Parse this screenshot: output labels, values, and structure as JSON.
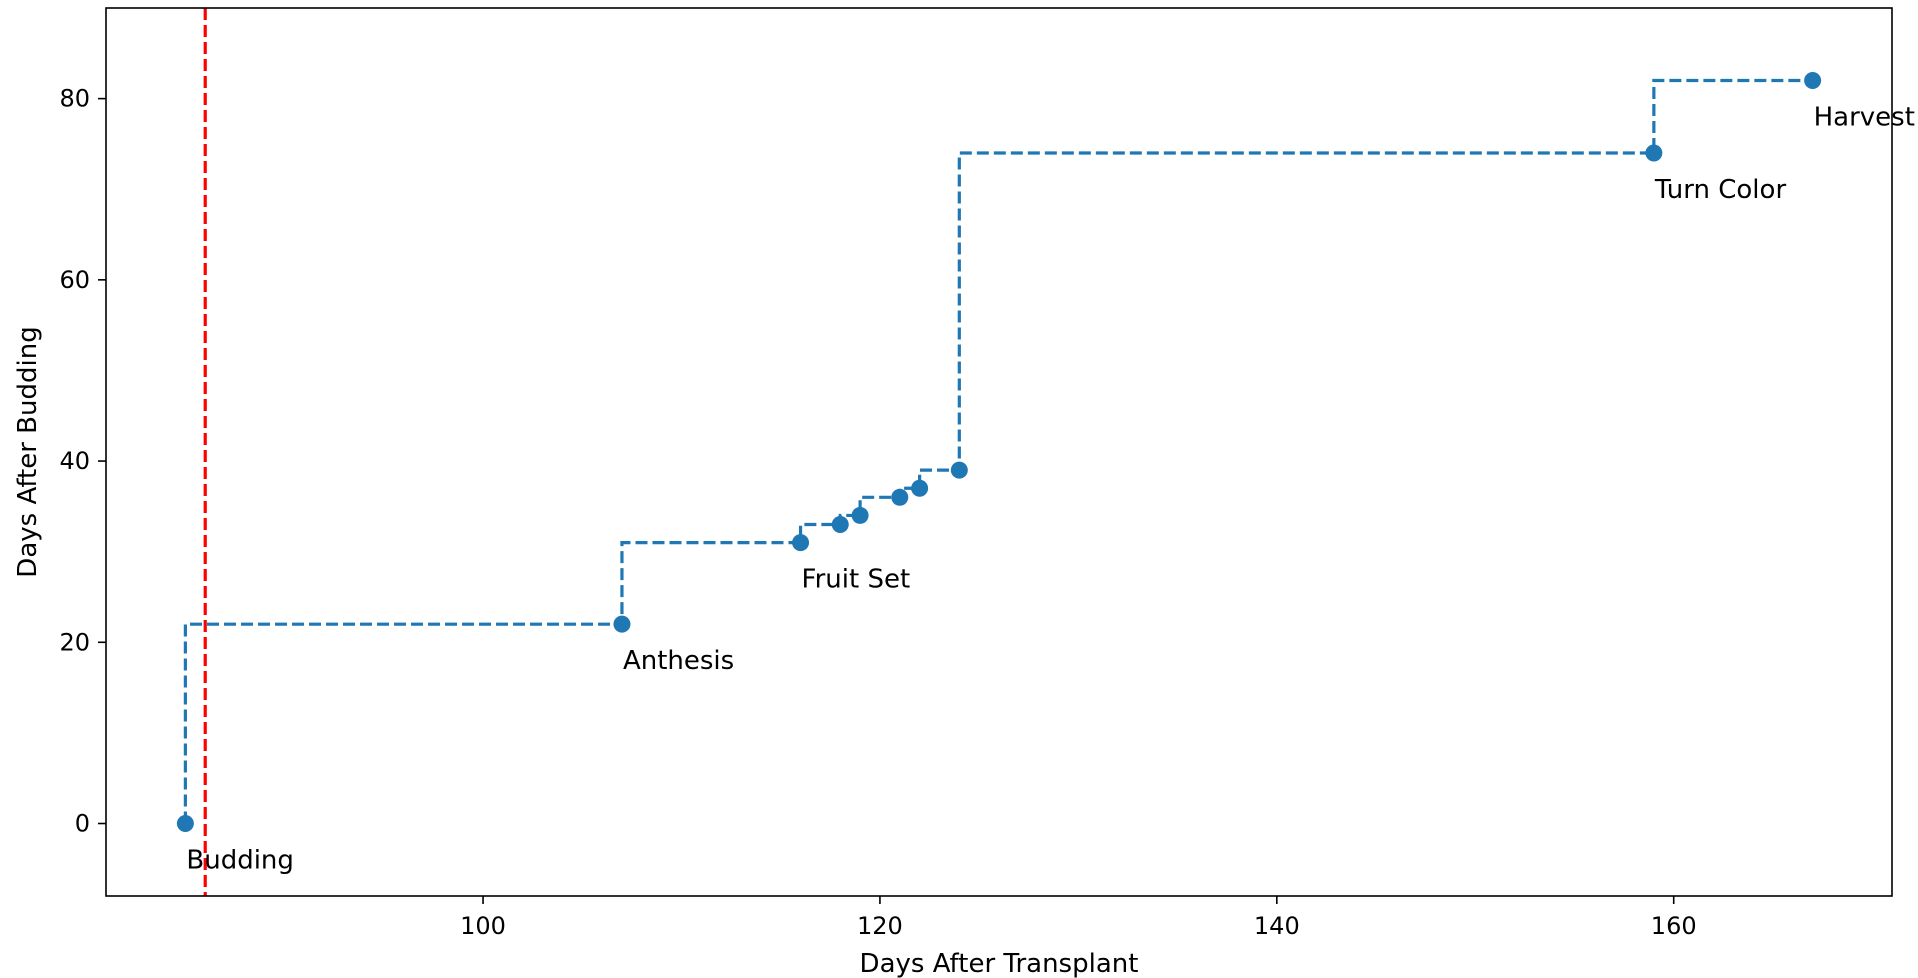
{
  "chart_data": {
    "type": "line",
    "title": "",
    "xlabel": "Days After Transplant",
    "ylabel": "Days After Budding",
    "xlim": [
      81,
      171
    ],
    "ylim": [
      -8,
      90
    ],
    "xticks": [
      100,
      120,
      140,
      160
    ],
    "yticks": [
      0,
      20,
      40,
      60,
      80
    ],
    "grid": false,
    "legend": "none",
    "series": [
      {
        "style": "steps-pre, dashed line with circle markers",
        "color": "#1f77b4",
        "x": [
          85,
          107,
          116,
          118,
          119,
          121,
          122,
          124,
          159,
          167
        ],
        "y": [
          0,
          22,
          31,
          33,
          34,
          36,
          37,
          39,
          74,
          82
        ]
      }
    ],
    "vline": {
      "x": 86,
      "color": "#ff0000",
      "style": "dashed"
    },
    "annotations": [
      {
        "text": "Budding",
        "x": 85,
        "y": 0
      },
      {
        "text": "Anthesis",
        "x": 107,
        "y": 22
      },
      {
        "text": "Fruit Set",
        "x": 116,
        "y": 31
      },
      {
        "text": "Turn Color",
        "x": 159,
        "y": 74
      },
      {
        "text": "Harvest",
        "x": 167,
        "y": 82
      }
    ]
  }
}
